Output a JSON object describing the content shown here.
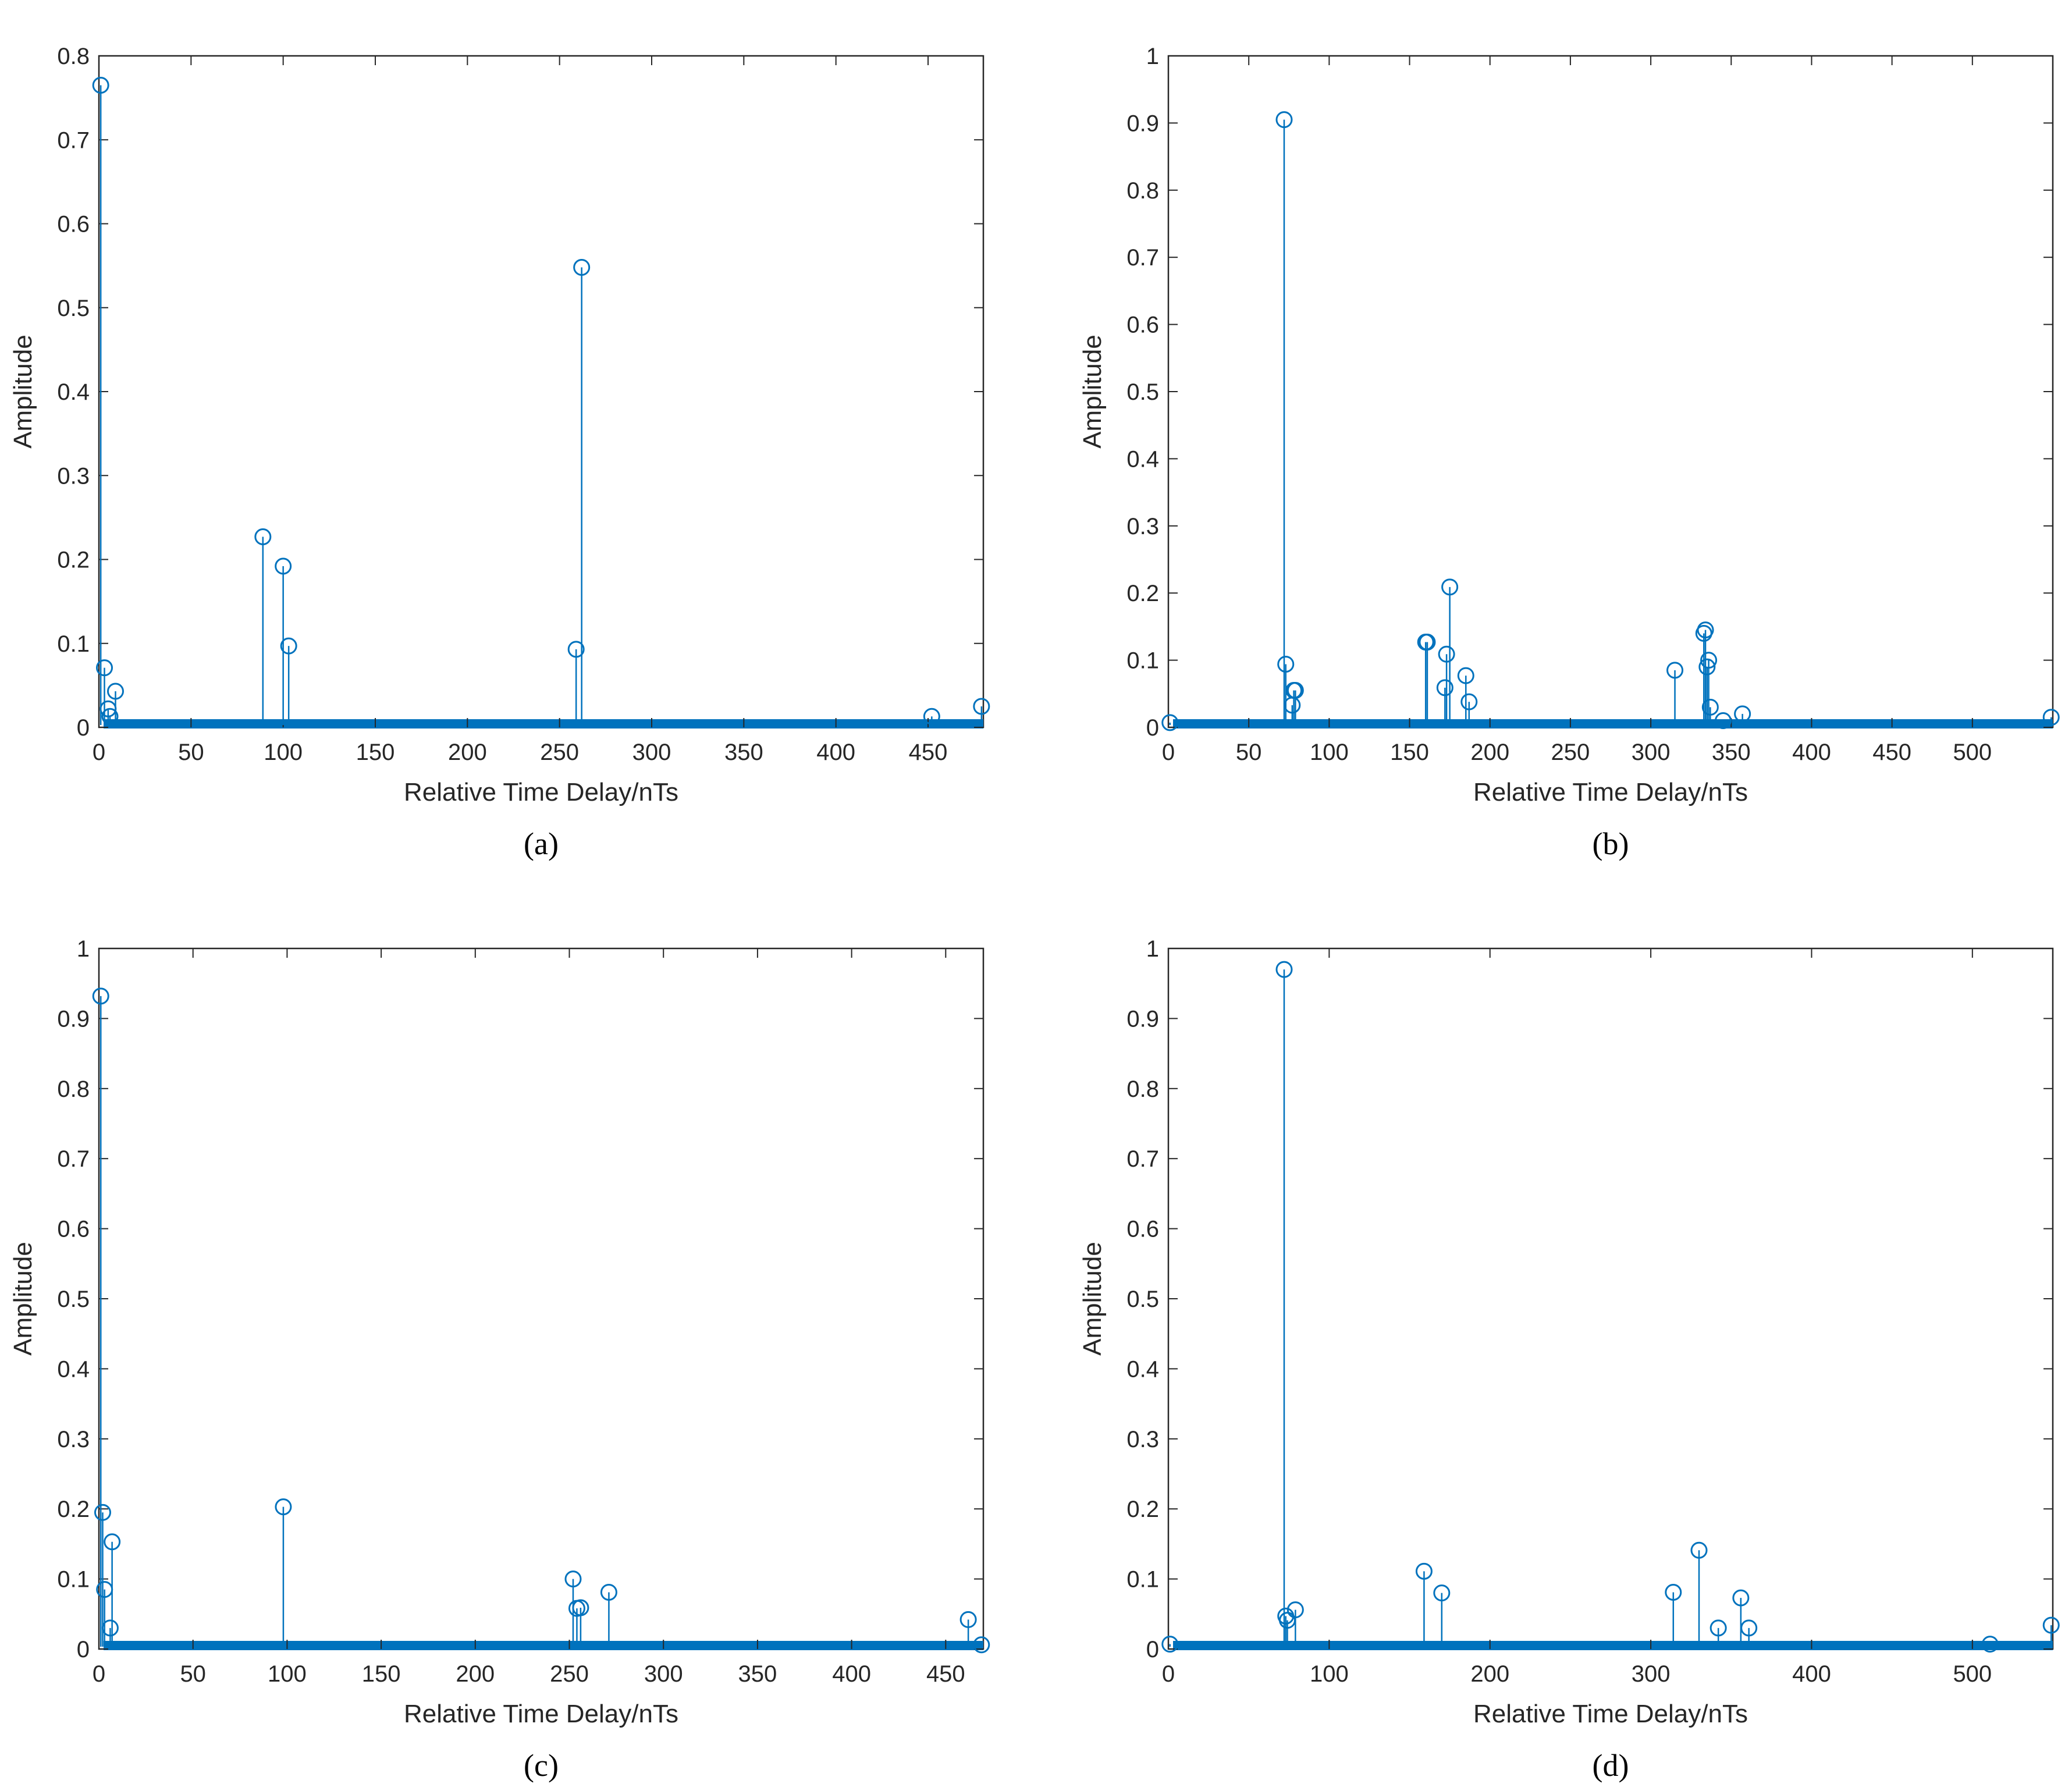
{
  "figure": {
    "series_color": "#0072BD",
    "frame_color": "#262626"
  },
  "chart_data": [
    {
      "type": "stem",
      "caption": "(a)",
      "xlabel": "Relative Time Delay/nTs",
      "ylabel": "Amplitude",
      "xlim": [
        0,
        480
      ],
      "ylim": [
        0,
        0.8
      ],
      "xticks": [
        0,
        50,
        100,
        150,
        200,
        250,
        300,
        350,
        400,
        450
      ],
      "yticks": [
        0,
        0.1,
        0.2,
        0.3,
        0.4,
        0.5,
        0.6,
        0.7,
        0.8
      ],
      "x": [
        1,
        3,
        5,
        6,
        9,
        89,
        100,
        103,
        259,
        262,
        452,
        479
      ],
      "y": [
        0.765,
        0.071,
        0.022,
        0.013,
        0.043,
        0.227,
        0.192,
        0.097,
        0.093,
        0.548,
        0.013,
        0.025
      ]
    },
    {
      "type": "stem",
      "caption": "(b)",
      "xlabel": "Relative Time Delay/nTs",
      "ylabel": "Amplitude",
      "xlim": [
        0,
        550
      ],
      "ylim": [
        0,
        1
      ],
      "xticks": [
        0,
        50,
        100,
        150,
        200,
        250,
        300,
        350,
        400,
        450,
        500
      ],
      "yticks": [
        0,
        0.1,
        0.2,
        0.3,
        0.4,
        0.5,
        0.6,
        0.7,
        0.8,
        0.9,
        1
      ],
      "x": [
        1,
        72,
        73,
        77,
        78,
        79,
        160,
        161,
        172,
        173,
        175,
        185,
        187,
        315,
        333,
        334,
        335,
        336,
        337,
        345,
        357,
        549
      ],
      "y": [
        0.007,
        0.905,
        0.094,
        0.033,
        0.055,
        0.055,
        0.127,
        0.127,
        0.059,
        0.109,
        0.209,
        0.077,
        0.038,
        0.085,
        0.14,
        0.145,
        0.09,
        0.1,
        0.03,
        0.01,
        0.02,
        0.015
      ]
    },
    {
      "type": "stem",
      "caption": "(c)",
      "xlabel": "Relative Time Delay/nTs",
      "ylabel": "Amplitude",
      "xlim": [
        0,
        470
      ],
      "ylim": [
        0,
        1
      ],
      "xticks": [
        0,
        50,
        100,
        150,
        200,
        250,
        300,
        350,
        400,
        450
      ],
      "yticks": [
        0,
        0.1,
        0.2,
        0.3,
        0.4,
        0.5,
        0.6,
        0.7,
        0.8,
        0.9,
        1
      ],
      "x": [
        1,
        2,
        3,
        6,
        7,
        98,
        252,
        254,
        256,
        271,
        462,
        469
      ],
      "y": [
        0.932,
        0.195,
        0.085,
        0.03,
        0.153,
        0.203,
        0.1,
        0.058,
        0.059,
        0.081,
        0.042,
        0.006
      ]
    },
    {
      "type": "stem",
      "caption": "(d)",
      "xlabel": "Relative Time Delay/nTs",
      "ylabel": "Amplitude",
      "xlim": [
        0,
        550
      ],
      "ylim": [
        0,
        1
      ],
      "xticks": [
        0,
        100,
        200,
        300,
        400,
        500
      ],
      "yticks": [
        0,
        0.1,
        0.2,
        0.3,
        0.4,
        0.5,
        0.6,
        0.7,
        0.8,
        0.9,
        1
      ],
      "x": [
        1,
        72,
        73,
        74,
        79,
        159,
        170,
        314,
        330,
        342,
        356,
        361,
        511,
        549
      ],
      "y": [
        0.007,
        0.97,
        0.047,
        0.041,
        0.056,
        0.111,
        0.08,
        0.081,
        0.141,
        0.03,
        0.073,
        0.03,
        0.007,
        0.034
      ]
    }
  ]
}
